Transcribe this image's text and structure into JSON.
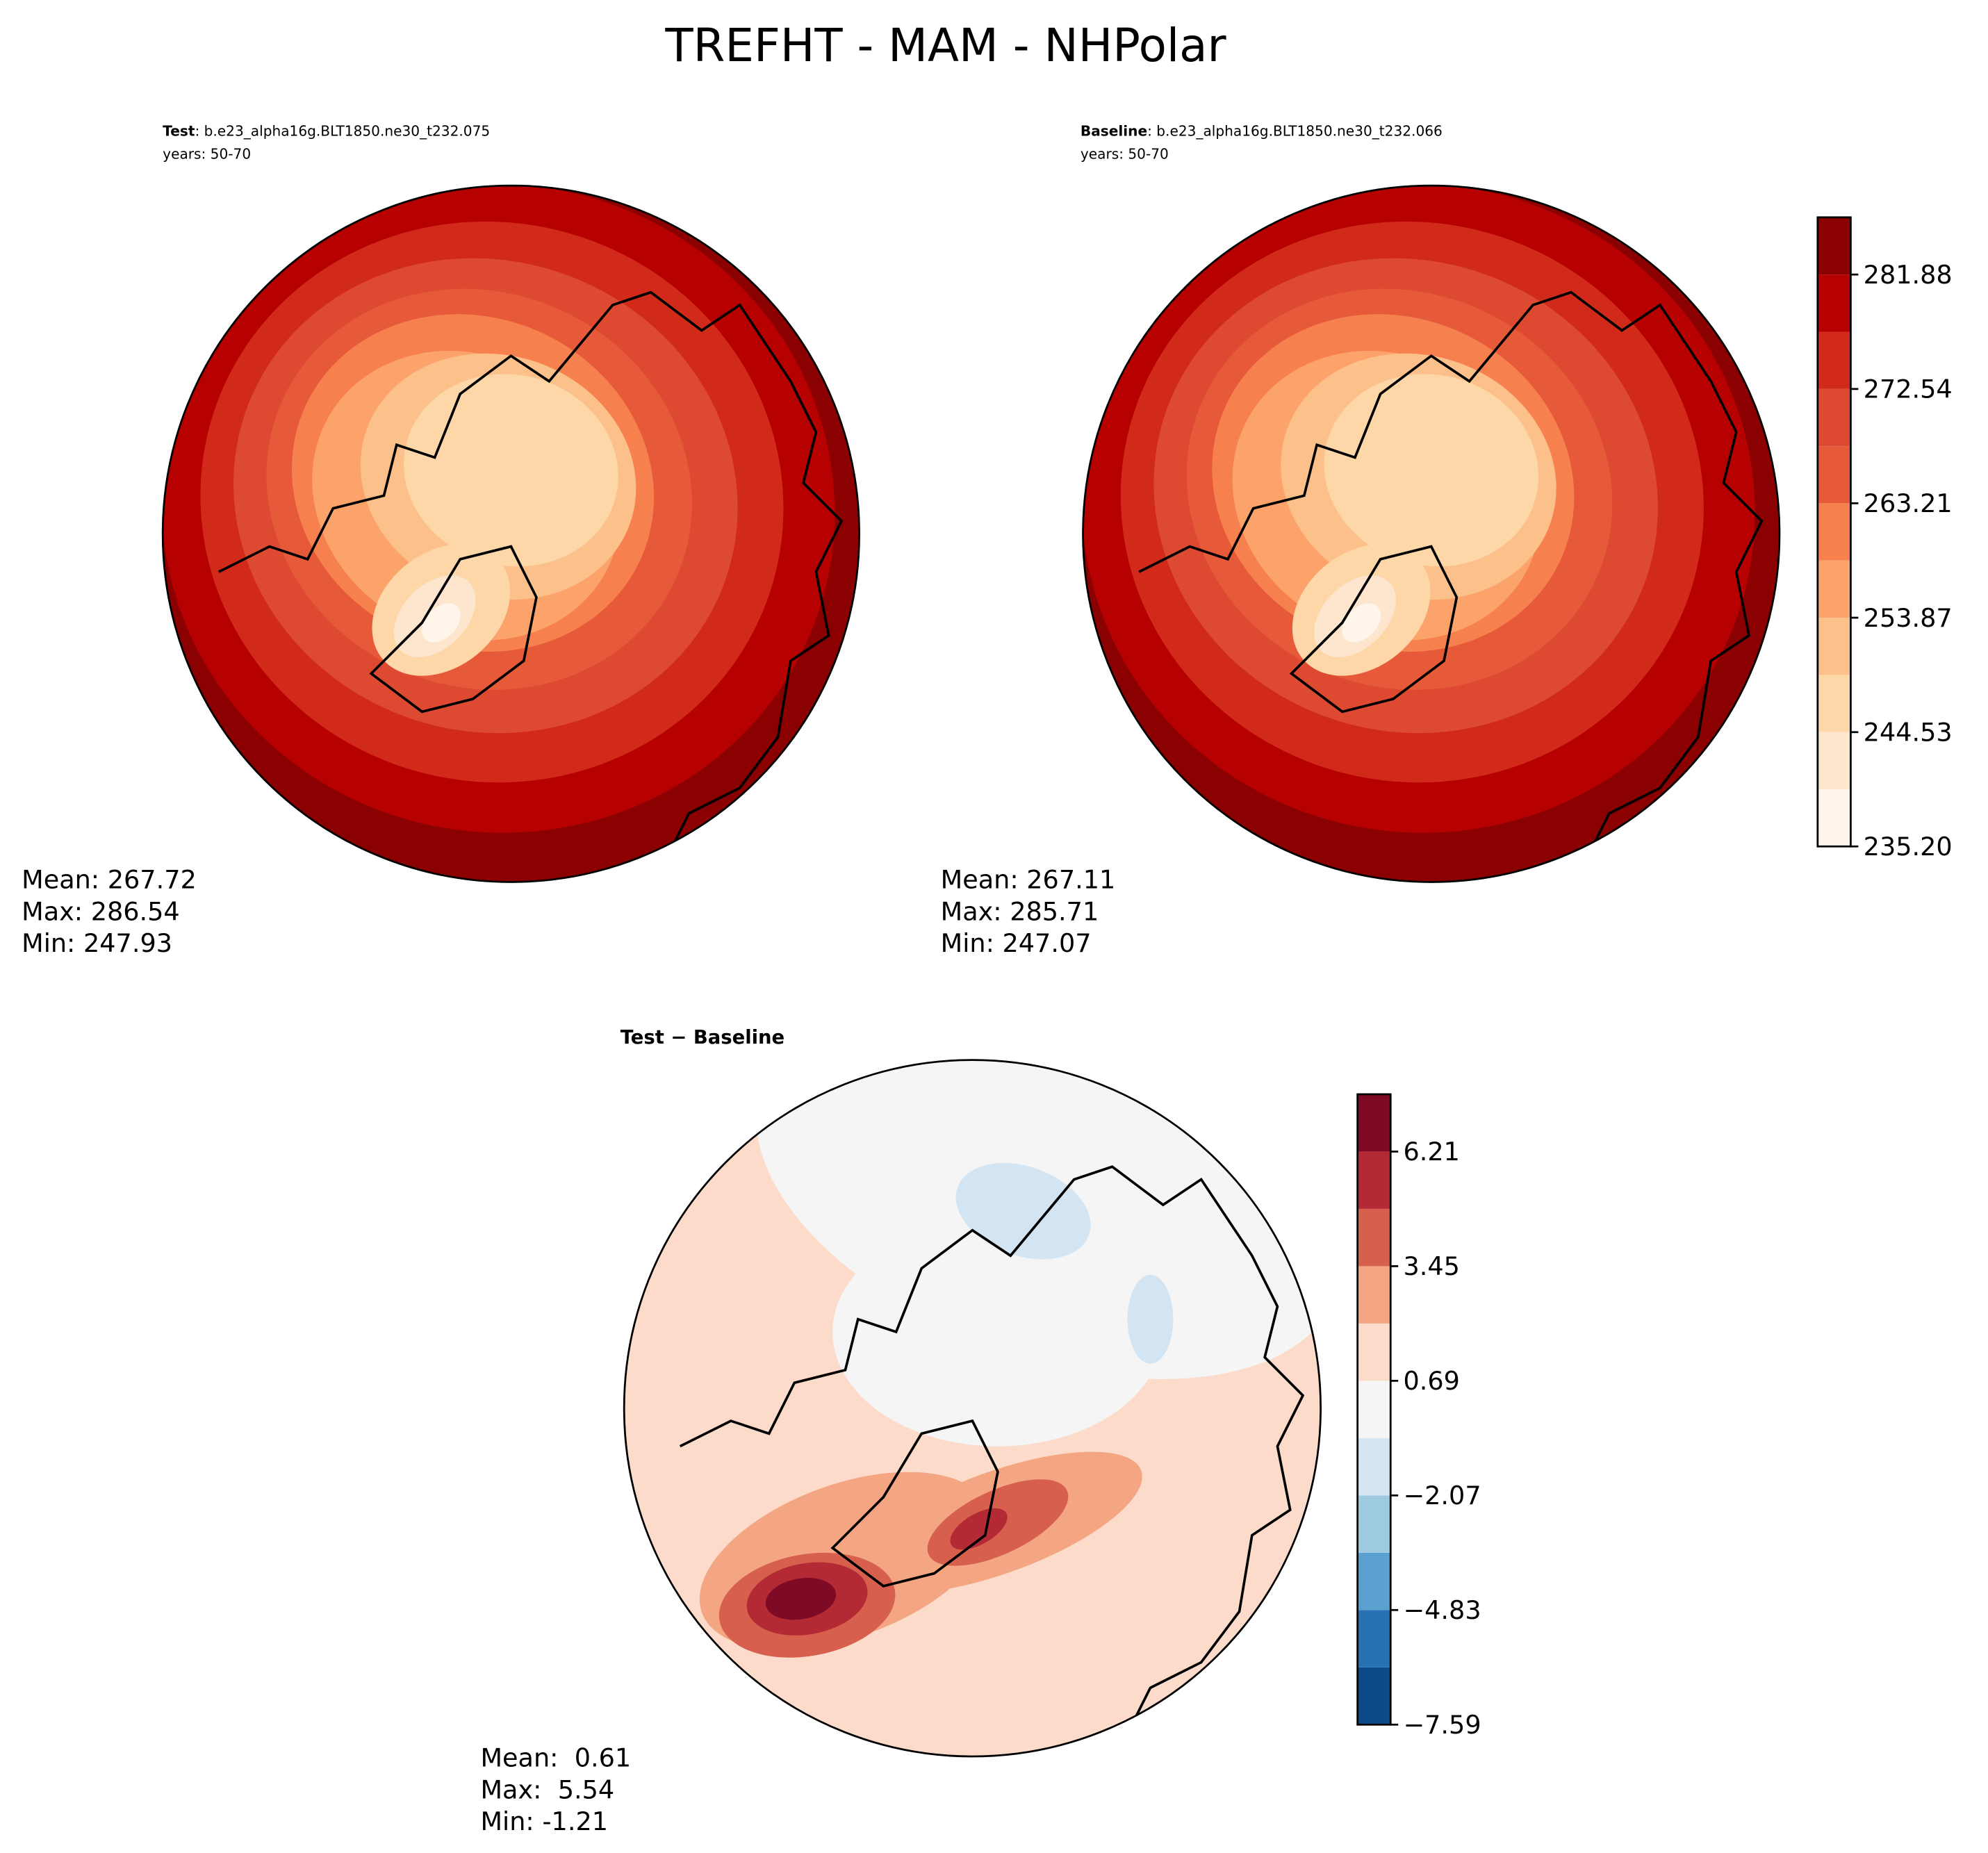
{
  "title": "TREFHT - MAM - NHPolar",
  "panels": [
    {
      "name": "Test",
      "case": ": b.e23_alpha16g.BLT1850.ne30_t232.075",
      "years": "years: 50-70",
      "stats": [
        "Mean: 267.72",
        "Max: 286.54",
        "Min: 247.93"
      ]
    },
    {
      "name": "Baseline",
      "case": ": b.e23_alpha16g.BLT1850.ne30_t232.066",
      "years": "years: 50-70",
      "stats": [
        "Mean: 267.11",
        "Max: 285.71",
        "Min: 247.07"
      ]
    },
    {
      "title": "Test − Baseline",
      "stats": [
        "Mean:  0.61",
        "Max:  5.54",
        "Min: -1.21"
      ]
    }
  ],
  "chart_data": [
    {
      "type": "colorbar",
      "levels": [
        235.2,
        239.87,
        244.53,
        249.2,
        253.87,
        258.54,
        263.21,
        267.87,
        272.54,
        277.21,
        281.88,
        286.55
      ],
      "colors": [
        "#fff5eb",
        "#fee6ce",
        "#fdd7a8",
        "#fcc08b",
        "#fca36c",
        "#f6814f",
        "#e65a3a",
        "#de4a31",
        "#d22a1a",
        "#b70000",
        "#8b0000"
      ],
      "ylim": [
        235.2,
        286.55
      ],
      "yticks": [
        {
          "value": 235.2,
          "label": "235.20"
        },
        244.53,
        253.87,
        263.21,
        272.54,
        281.88
      ]
    },
    {
      "type": "colorbar",
      "levels": [
        -7.59,
        -6.21,
        -4.83,
        -3.45,
        -2.07,
        -0.69,
        0.69,
        2.07,
        3.45,
        4.83,
        6.21,
        7.59
      ],
      "colors": [
        "#0d4a87",
        "#2671b4",
        "#5aa1cf",
        "#9ecae1",
        "#d3e5f2",
        "#f5f5f5",
        "#fcdbcb",
        "#f4a582",
        "#d6604d",
        "#b42a34",
        "#7f0a25"
      ],
      "ylim": [
        -7.59,
        7.59
      ],
      "yticks": [
        {
          "value": -7.59,
          "label": "−7.59"
        },
        {
          "value": -4.83,
          "label": "−4.83"
        },
        {
          "value": -2.07,
          "label": "−2.07"
        },
        0.69,
        3.45,
        6.21
      ]
    }
  ]
}
